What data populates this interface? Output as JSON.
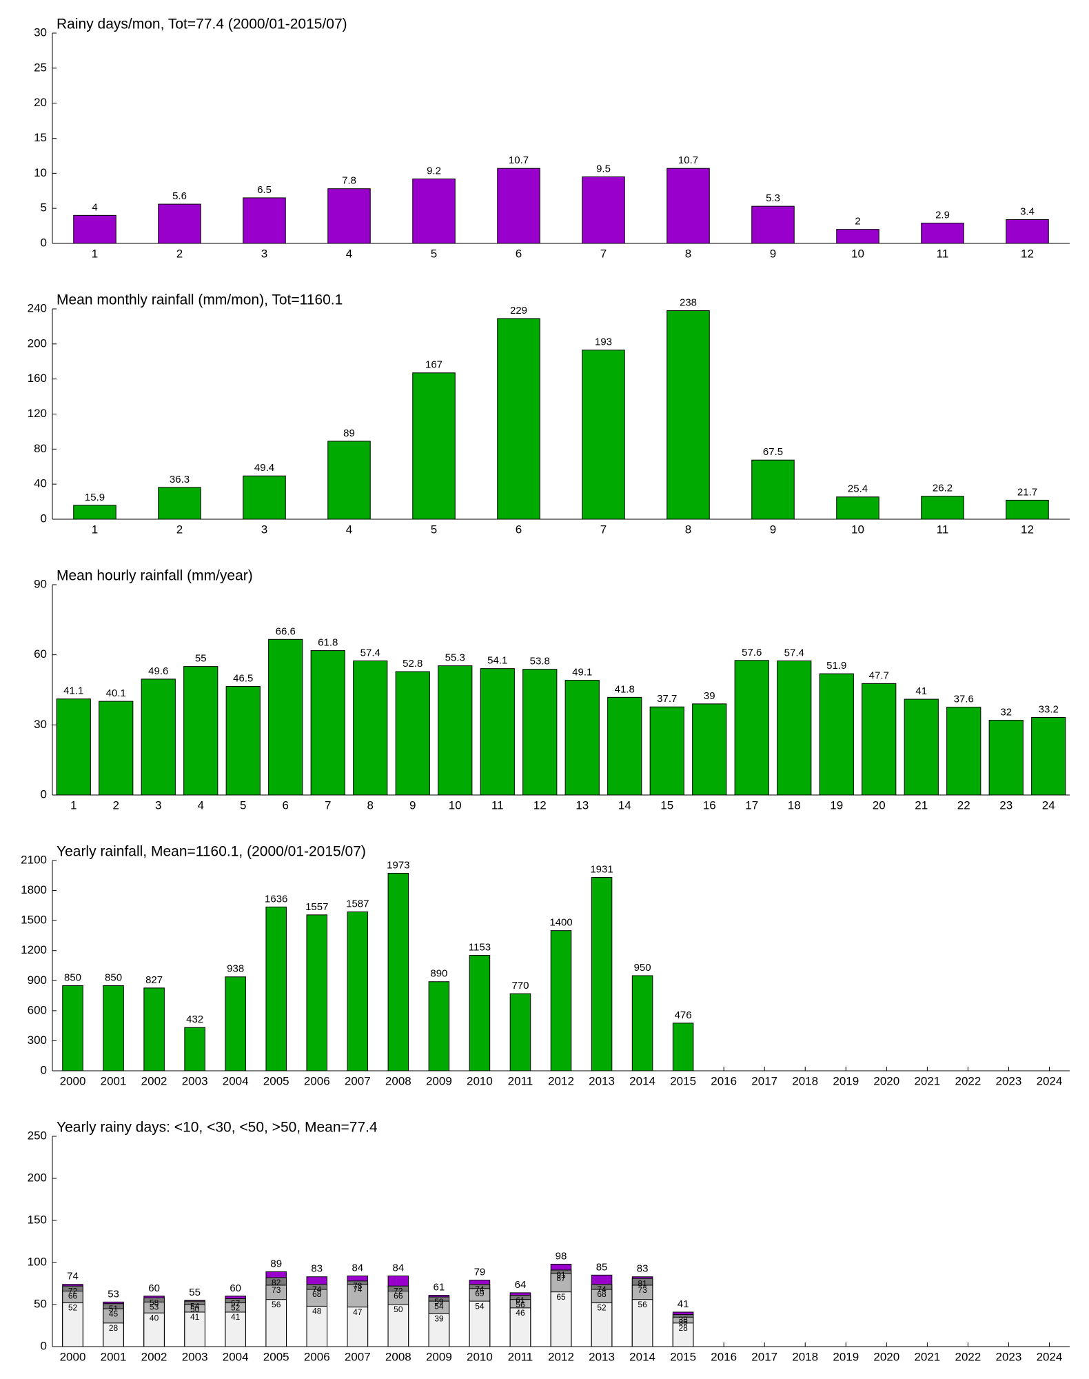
{
  "chart_data": [
    {
      "type": "bar",
      "title": "Rainy days/mon, Tot=77.4 (2000/01-2015/07)",
      "categories": [
        "1",
        "2",
        "3",
        "4",
        "5",
        "6",
        "7",
        "8",
        "9",
        "10",
        "11",
        "12"
      ],
      "values": [
        4,
        5.6,
        6.5,
        7.8,
        9.2,
        10.7,
        9.5,
        10.7,
        5.3,
        2,
        2.9,
        3.4
      ],
      "color": "#9900cc",
      "ylim": [
        0,
        30
      ],
      "yticks": [
        0,
        5,
        10,
        15,
        20,
        25,
        30
      ]
    },
    {
      "type": "bar",
      "title": "Mean monthly rainfall (mm/mon), Tot=1160.1",
      "categories": [
        "1",
        "2",
        "3",
        "4",
        "5",
        "6",
        "7",
        "8",
        "9",
        "10",
        "11",
        "12"
      ],
      "values": [
        15.9,
        36.3,
        49.4,
        89,
        167,
        229,
        193,
        238,
        67.5,
        25.4,
        26.2,
        21.7
      ],
      "color": "#00aa00",
      "ylim": [
        0,
        240
      ],
      "yticks": [
        0,
        40,
        80,
        120,
        160,
        200,
        240
      ]
    },
    {
      "type": "bar",
      "title": "Mean hourly rainfall (mm/year)",
      "categories": [
        "1",
        "2",
        "3",
        "4",
        "5",
        "6",
        "7",
        "8",
        "9",
        "10",
        "11",
        "12",
        "13",
        "14",
        "15",
        "16",
        "17",
        "18",
        "19",
        "20",
        "21",
        "22",
        "23",
        "24"
      ],
      "values": [
        41.1,
        40.1,
        49.6,
        55,
        46.5,
        66.6,
        61.8,
        57.4,
        52.8,
        55.3,
        54.1,
        53.8,
        49.1,
        41.8,
        37.7,
        39,
        57.6,
        57.4,
        51.9,
        47.7,
        41,
        37.6,
        32,
        33.2
      ],
      "color": "#00aa00",
      "ylim": [
        0,
        90
      ],
      "yticks": [
        0,
        30,
        60,
        90
      ]
    },
    {
      "type": "bar",
      "title": "Yearly rainfall, Mean=1160.1, (2000/01-2015/07)",
      "categories": [
        "2000",
        "2001",
        "2002",
        "2003",
        "2004",
        "2005",
        "2006",
        "2007",
        "2008",
        "2009",
        "2010",
        "2011",
        "2012",
        "2013",
        "2014",
        "2015",
        "2016",
        "2017",
        "2018",
        "2019",
        "2020",
        "2021",
        "2022",
        "2023",
        "2024"
      ],
      "values": [
        850,
        850,
        827,
        432,
        938,
        1636,
        1557,
        1587,
        1973,
        890,
        1153,
        770,
        1400,
        1931,
        950,
        476,
        null,
        null,
        null,
        null,
        null,
        null,
        null,
        null,
        null
      ],
      "color": "#00aa00",
      "ylim": [
        0,
        2100
      ],
      "yticks": [
        0,
        300,
        600,
        900,
        1200,
        1500,
        1800,
        2100
      ]
    },
    {
      "type": "overlaid-bar",
      "title": "Yearly rainy days: <10, <30, <50, >50, Mean=77.4",
      "categories": [
        "2000",
        "2001",
        "2002",
        "2003",
        "2004",
        "2005",
        "2006",
        "2007",
        "2008",
        "2009",
        "2010",
        "2011",
        "2012",
        "2013",
        "2014",
        "2015",
        "2016",
        "2017",
        "2018",
        "2019",
        "2020",
        "2021",
        "2022",
        "2023",
        "2024"
      ],
      "series": [
        {
          "color": "#f0f0f0",
          "values": [
            52,
            28,
            40,
            41,
            41,
            56,
            48,
            47,
            50,
            39,
            54,
            46,
            65,
            52,
            56,
            28,
            null,
            null,
            null,
            null,
            null,
            null,
            null,
            null,
            null
          ]
        },
        {
          "color": "#b4b4b4",
          "values": [
            66,
            45,
            53,
            50,
            52,
            73,
            68,
            74,
            66,
            54,
            69,
            56,
            87,
            68,
            73,
            35,
            null,
            null,
            null,
            null,
            null,
            null,
            null,
            null,
            null
          ]
        },
        {
          "color": "#7a7a7a",
          "values": [
            72,
            51,
            58,
            54,
            57,
            82,
            74,
            78,
            72,
            59,
            74,
            61,
            91,
            74,
            81,
            38,
            null,
            null,
            null,
            null,
            null,
            null,
            null,
            null,
            null
          ]
        },
        {
          "color": "#9900cc",
          "values": [
            74,
            53,
            60,
            55,
            60,
            89,
            83,
            84,
            84,
            61,
            79,
            64,
            98,
            85,
            83,
            41,
            null,
            null,
            null,
            null,
            null,
            null,
            null,
            null,
            null
          ]
        }
      ],
      "ylim": [
        0,
        250
      ],
      "yticks": [
        0,
        50,
        100,
        150,
        200,
        250
      ]
    }
  ]
}
